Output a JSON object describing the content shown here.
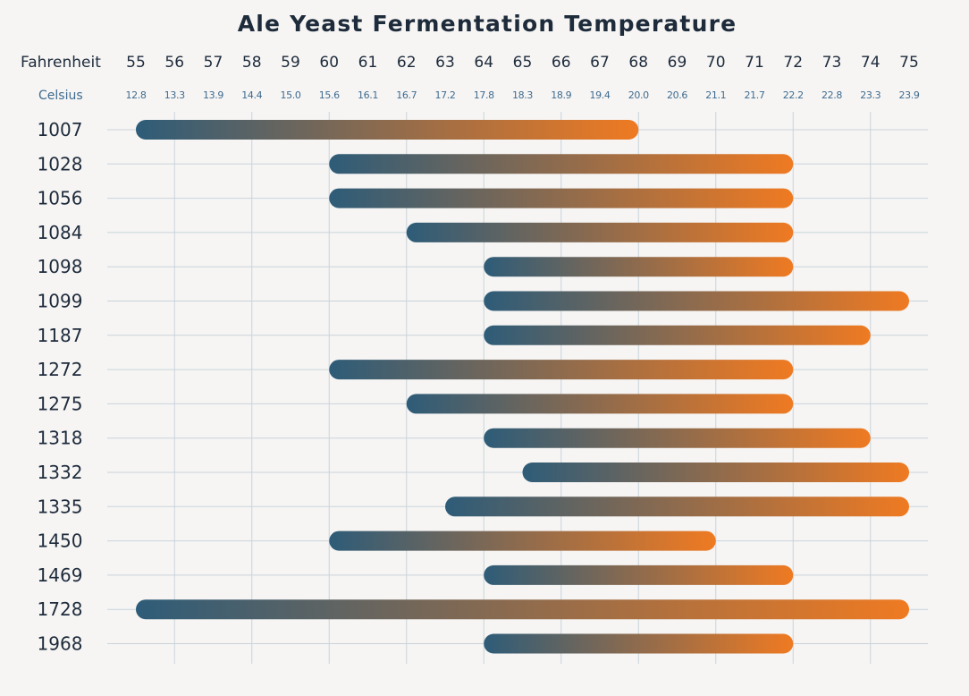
{
  "chart_data": {
    "type": "bar",
    "orientation": "horizontal-range",
    "title": "Ale Yeast Fermentation Temperature",
    "x_axis_primary": {
      "label": "Fahrenheit",
      "ticks": [
        "55",
        "56",
        "57",
        "58",
        "59",
        "60",
        "61",
        "62",
        "63",
        "64",
        "65",
        "66",
        "67",
        "68",
        "69",
        "70",
        "71",
        "72",
        "73",
        "74",
        "75"
      ]
    },
    "x_axis_secondary": {
      "label": "Celsius",
      "ticks": [
        "12.8",
        "13.3",
        "13.9",
        "14.4",
        "15.0",
        "15.6",
        "16.1",
        "16.7",
        "17.2",
        "17.8",
        "18.3",
        "18.9",
        "19.4",
        "20.0",
        "20.6",
        "21.1",
        "21.7",
        "22.2",
        "22.8",
        "23.3",
        "23.9"
      ]
    },
    "xlim": [
      55,
      75
    ],
    "grid": true,
    "bar_gradient": {
      "start": "#2e5c78",
      "end": "#ef7a22"
    },
    "categories": [
      "1007",
      "1028",
      "1056",
      "1084",
      "1098",
      "1099",
      "1187",
      "1272",
      "1275",
      "1318",
      "1332",
      "1335",
      "1450",
      "1469",
      "1728",
      "1968"
    ],
    "ranges": [
      [
        55,
        68
      ],
      [
        60,
        72
      ],
      [
        60,
        72
      ],
      [
        62,
        72
      ],
      [
        64,
        72
      ],
      [
        64,
        75
      ],
      [
        64,
        74
      ],
      [
        60,
        72
      ],
      [
        62,
        72
      ],
      [
        64,
        74
      ],
      [
        65,
        75
      ],
      [
        63,
        75
      ],
      [
        60,
        70
      ],
      [
        64,
        72
      ],
      [
        55,
        75
      ],
      [
        64,
        72
      ]
    ]
  }
}
